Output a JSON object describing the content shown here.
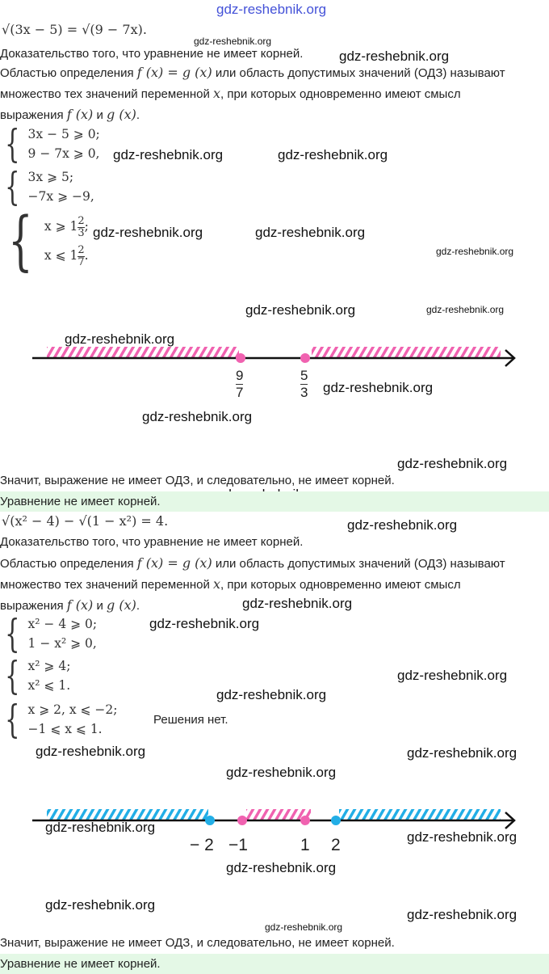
{
  "watermark": "gdz-reshebnik.org",
  "colors": {
    "pink": "#f062b0",
    "blue": "#22aee6",
    "green_bar": "#e4f8e6"
  },
  "p1": {
    "equation": "√(3x − 5) = √(9 − 7x).",
    "proof": "Доказательство того, что уравнение не имеет корней.",
    "def_a": "Областью определения ",
    "def_fg": "f (x) = g (x)",
    "def_b": " или область допустимых значений (ОДЗ) называют",
    "def_line2a": "множество тех значений переменной ",
    "def_x": "x",
    "def_line2b": ", при которых одновременно имеют смысл",
    "def_line3a": "выражения ",
    "def_f": "f (x)",
    "def_and": " и ",
    "def_g": "g (x)",
    "def_end": ".",
    "sys1": [
      "3x − 5 ⩾ 0;",
      "9 − 7x ⩾ 0,"
    ],
    "sys2": [
      "3x ⩾ 5;",
      "−7x ⩾ −9,"
    ],
    "sys3": {
      "r1": "x ⩾ 1",
      "r1n": "2",
      "r1d": "3",
      "r1e": ";",
      "r2": "x ⩽ 1",
      "r2n": "2",
      "r2d": "7",
      "r2e": "."
    },
    "line_labels": [
      {
        "n": "9",
        "d": "7"
      },
      {
        "n": "5",
        "d": "3"
      }
    ],
    "conclusion": "Значит, выражение не имеет ОДЗ, и следовательно, не имеет корней.",
    "answer": "Уравнение не имеет корней."
  },
  "p2": {
    "equation": "√(x² − 4) − √(1 − x²) = 4.",
    "proof": "Доказательство того, что уравнение не имеет корней.",
    "sys1": [
      "x² − 4 ⩾ 0;",
      "1 − x² ⩾ 0,"
    ],
    "sys2": [
      "x² ⩾ 4;",
      "x² ⩽ 1."
    ],
    "sys3": [
      "x ⩾ 2,  x ⩽ −2;",
      "−1 ⩽ x ⩽ 1."
    ],
    "no_solutions": "Решения нет.",
    "line_labels": [
      "− 2",
      "−1",
      "1",
      "2"
    ],
    "conclusion": "Значит, выражение не имеет ОДЗ, и следовательно, не имеет корней.",
    "answer": "Уравнение не имеет корней."
  }
}
